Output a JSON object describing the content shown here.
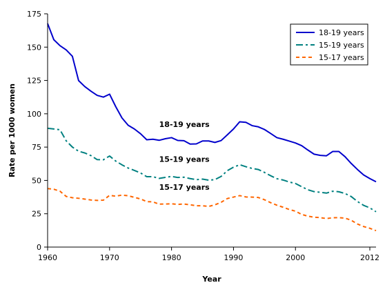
{
  "chart_data": {
    "type": "line",
    "title": "",
    "xlabel": "Year",
    "ylabel": "Rate per 1000 women",
    "xlim": [
      1960,
      2013
    ],
    "ylim": [
      0,
      175
    ],
    "x_ticks": [
      1960,
      1970,
      1980,
      1990,
      2000,
      2012
    ],
    "y_ticks": [
      0,
      25,
      50,
      75,
      100,
      125,
      150,
      175
    ],
    "grid": false,
    "legend_position": "top-right",
    "x": [
      1960,
      1961,
      1962,
      1963,
      1964,
      1965,
      1966,
      1967,
      1968,
      1969,
      1970,
      1971,
      1972,
      1973,
      1974,
      1975,
      1976,
      1977,
      1978,
      1979,
      1980,
      1981,
      1982,
      1983,
      1984,
      1985,
      1986,
      1987,
      1988,
      1989,
      1990,
      1991,
      1992,
      1993,
      1994,
      1995,
      1996,
      1997,
      1998,
      1999,
      2000,
      2001,
      2002,
      2003,
      2004,
      2005,
      2006,
      2007,
      2008,
      2009,
      2010,
      2011,
      2012,
      2013
    ],
    "series": [
      {
        "name": "18-19 years",
        "color": "#0000cc",
        "dash": "solid",
        "annotation": "18-19 years",
        "annotation_x": 1978,
        "annotation_y": 90,
        "values": [
          167.7,
          155.6,
          151.1,
          147.9,
          143.1,
          124.9,
          120.4,
          116.9,
          113.8,
          112.5,
          114.7,
          105.3,
          96.9,
          91.4,
          88.6,
          85.0,
          80.5,
          80.9,
          80.1,
          81.3,
          82.1,
          80.0,
          79.8,
          77.3,
          77.4,
          79.6,
          79.6,
          78.5,
          79.9,
          84.2,
          88.6,
          94.0,
          93.6,
          91.1,
          90.2,
          88.2,
          85.2,
          82.1,
          80.9,
          79.5,
          78.1,
          76.1,
          72.8,
          69.7,
          68.8,
          68.5,
          71.7,
          71.7,
          67.8,
          62.7,
          58.2,
          54.1,
          51.4,
          49.0
        ]
      },
      {
        "name": "15-19 years",
        "color": "#008080",
        "dash": "dashdot",
        "annotation": "15-19 years",
        "annotation_x": 1978,
        "annotation_y": 64,
        "values": [
          89.1,
          88.6,
          88.0,
          79.7,
          75.0,
          71.9,
          70.6,
          68.6,
          65.6,
          65.5,
          68.3,
          64.5,
          61.7,
          59.3,
          57.5,
          55.6,
          52.8,
          52.8,
          51.5,
          52.3,
          53.0,
          52.2,
          52.4,
          51.4,
          50.6,
          51.0,
          50.2,
          50.6,
          53.0,
          57.3,
          59.9,
          61.8,
          60.3,
          59.0,
          58.2,
          56.0,
          53.5,
          51.3,
          50.3,
          48.8,
          47.7,
          45.3,
          43.0,
          41.6,
          41.1,
          40.5,
          41.9,
          41.5,
          40.2,
          37.9,
          34.2,
          31.3,
          29.4,
          26.5
        ]
      },
      {
        "name": "15-17 years",
        "color": "#ff6600",
        "dash": "dash",
        "annotation": "15-17 years",
        "annotation_x": 1978,
        "annotation_y": 43,
        "values": [
          43.9,
          43.4,
          41.9,
          38.0,
          37.0,
          36.6,
          36.0,
          35.3,
          35.0,
          35.2,
          38.8,
          38.2,
          39.0,
          38.5,
          37.3,
          36.1,
          34.1,
          33.9,
          32.2,
          32.3,
          32.5,
          32.0,
          32.3,
          31.7,
          31.0,
          31.0,
          30.5,
          31.7,
          33.6,
          36.4,
          37.5,
          38.6,
          37.6,
          37.5,
          37.2,
          35.5,
          33.3,
          31.4,
          29.9,
          28.2,
          26.9,
          24.5,
          23.2,
          22.4,
          22.1,
          21.4,
          22.0,
          22.1,
          21.7,
          20.1,
          17.3,
          15.4,
          14.1,
          12.3
        ]
      }
    ]
  }
}
